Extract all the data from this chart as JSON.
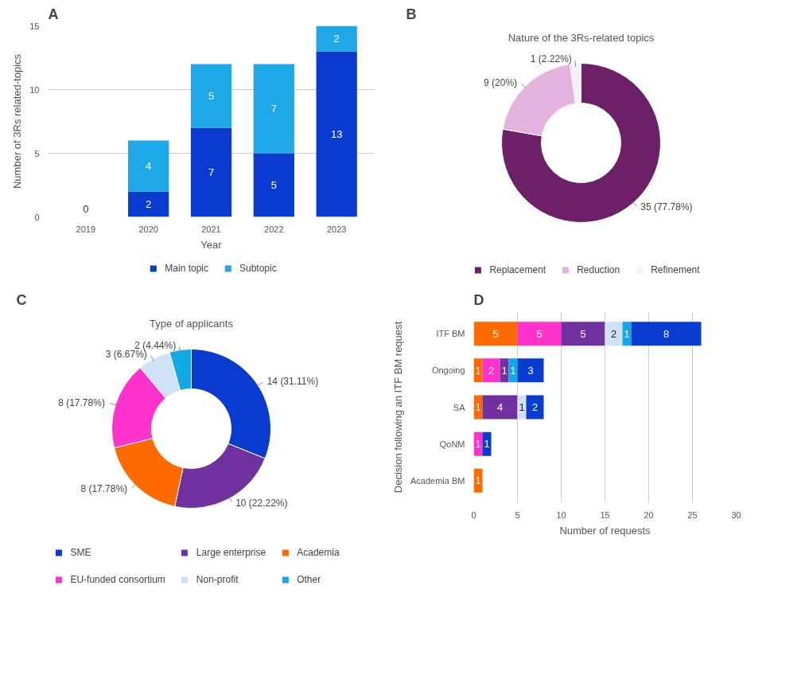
{
  "chart_data": [
    {
      "type": "bar",
      "stacked": true,
      "annotations": [
        "A"
      ],
      "xlabel": "Year",
      "ylabel": "Number of 3Rs related-topics",
      "categories": [
        "2019",
        "2020",
        "2021",
        "2022",
        "2023"
      ],
      "ylim": [
        0,
        15
      ],
      "yticks": [
        0,
        5,
        10,
        15
      ],
      "grid": "y",
      "legend": "bottom",
      "series": [
        {
          "name": "Main topic",
          "color": "#0a3bd1",
          "values": [
            0,
            2,
            7,
            5,
            13
          ],
          "value_labels": [
            "0",
            "2",
            "7",
            "5",
            "13"
          ]
        },
        {
          "name": "Subtopic",
          "color": "#1fa8e8",
          "values": [
            0,
            4,
            5,
            7,
            2
          ],
          "value_labels": [
            null,
            "4",
            "5",
            "7",
            "2"
          ]
        }
      ]
    },
    {
      "type": "donut",
      "annotations": [
        "B"
      ],
      "title": "Nature of the 3Rs-related topics",
      "legend": "bottom",
      "categories": [
        "Replacement",
        "Reduction",
        "Refinement"
      ],
      "values": [
        35,
        9,
        1
      ],
      "colors": [
        "#6d1f67",
        "#e4b3dd",
        "#f8eef6"
      ],
      "value_labels": [
        "35 (77.78%)",
        "9 (20%)",
        "1 (2.22%)"
      ]
    },
    {
      "type": "donut",
      "annotations": [
        "C"
      ],
      "title": "Type of applicants",
      "legend": "bottom",
      "categories": [
        "SME",
        "Large enterprise",
        "Academia",
        "EU-funded consortium",
        "Non-profit",
        "Other"
      ],
      "values": [
        14,
        10,
        8,
        8,
        3,
        2
      ],
      "colors": [
        "#0a3bd1",
        "#7030a0",
        "#ff6a00",
        "#ff33cc",
        "#cfe2f7",
        "#12a9e6"
      ],
      "value_labels": [
        "14 (31.11%)",
        "10 (22.22%)",
        "8 (17.78%)",
        "8 (17.78%)",
        "3 (6.67%)",
        "2 (4.44%)"
      ]
    },
    {
      "type": "bar",
      "stacked": true,
      "orientation": "horizontal",
      "annotations": [
        "D"
      ],
      "xlabel": "Number of requests",
      "ylabel": "Decision following an ITF BM request",
      "categories": [
        "ITF BM",
        "Ongoing",
        "SA",
        "QoNM",
        "Academia BM"
      ],
      "xlim": [
        0,
        30
      ],
      "xticks": [
        0,
        5,
        10,
        15,
        20,
        25,
        30
      ],
      "grid": "x",
      "series": [
        {
          "color": "#ff6a00",
          "values": [
            5,
            1,
            1,
            0,
            1
          ],
          "value_labels": [
            "5",
            "1",
            "1",
            null,
            "1"
          ]
        },
        {
          "color": "#ff33cc",
          "values": [
            5,
            2,
            0,
            1,
            0
          ],
          "value_labels": [
            "5",
            "2",
            null,
            "1",
            null
          ]
        },
        {
          "color": "#7030a0",
          "values": [
            5,
            1,
            4,
            0,
            0
          ],
          "value_labels": [
            "5",
            "1",
            "4",
            null,
            null
          ]
        },
        {
          "color": "#cfe2f7",
          "values": [
            2,
            0,
            1,
            0,
            0
          ],
          "value_labels": [
            "2",
            null,
            "1",
            null,
            null
          ]
        },
        {
          "color": "#12a9e6",
          "values": [
            1,
            1,
            0,
            0,
            0
          ],
          "value_labels": [
            "1",
            "1",
            null,
            null,
            null
          ]
        },
        {
          "color": "#0a3bd1",
          "values": [
            8,
            3,
            2,
            1,
            0
          ],
          "value_labels": [
            "8",
            "3",
            "2",
            "1",
            null
          ]
        }
      ]
    }
  ]
}
